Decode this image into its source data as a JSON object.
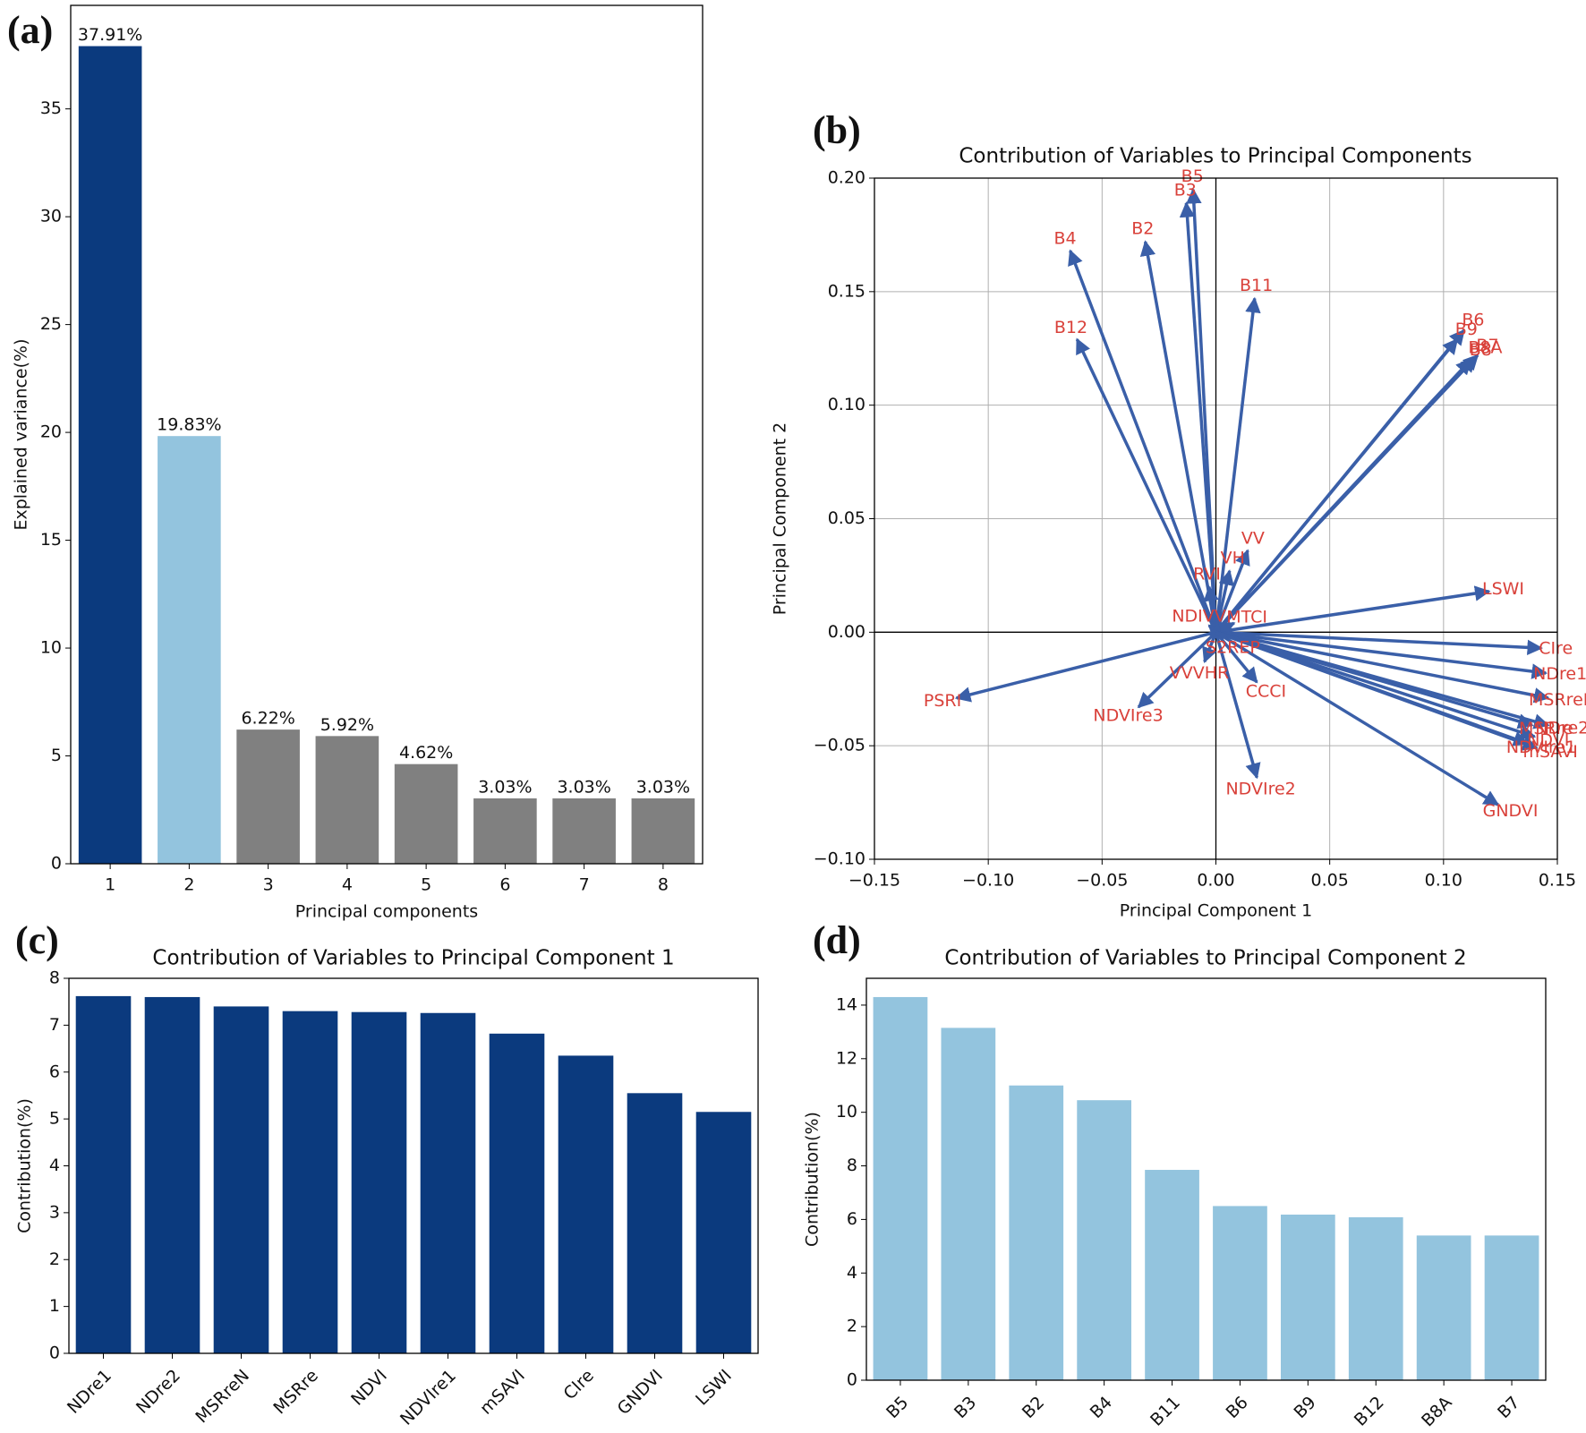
{
  "chart_data": [
    {
      "type": "bar",
      "panel": "(a)",
      "xlabel": "Principal components",
      "ylabel": "Explained variance(%)",
      "categories": [
        "1",
        "2",
        "3",
        "4",
        "5",
        "6",
        "7",
        "8"
      ],
      "values": [
        37.91,
        19.83,
        6.22,
        5.92,
        4.62,
        3.03,
        3.03,
        3.03
      ],
      "value_labels": [
        "37.91%",
        "19.83%",
        "6.22%",
        "5.92%",
        "4.62%",
        "3.03%",
        "3.03%",
        "3.03%"
      ],
      "colors": [
        "#0b3a7e",
        "#93c4de",
        "#808080",
        "#808080",
        "#808080",
        "#808080",
        "#808080",
        "#808080"
      ],
      "ylim": [
        0,
        39.8
      ],
      "yticks": [
        0,
        5,
        10,
        15,
        20,
        25,
        30,
        35
      ],
      "grid": false
    },
    {
      "type": "quiver",
      "panel": "(b)",
      "title": "Contribution of Variables to Principal Components",
      "xlabel": "Principal Component 1",
      "ylabel": "Principal Component 2",
      "names": [
        "B5",
        "B3",
        "B4",
        "B2",
        "B11",
        "B12",
        "B6",
        "B9",
        "B7",
        "B8",
        "B8A",
        "VV",
        "VH",
        "RVI",
        "LSWI",
        "NDIVV",
        "MTCI",
        "S2REP",
        "VVVHR",
        "CCCI",
        "NDVIre3",
        "NDVIre2",
        "PSRI",
        "CIre",
        "NDre1",
        "MSRreN",
        "NDre2",
        "MSRre",
        "NDVIre1",
        "NDVI",
        "mSAVI",
        "GNDVI"
      ],
      "x": [
        -0.01,
        -0.013,
        -0.064,
        -0.031,
        0.017,
        -0.061,
        0.109,
        0.106,
        0.115,
        0.112,
        0.114,
        0.014,
        0.006,
        -0.003,
        0.12,
        -0.003,
        0.008,
        0.003,
        -0.005,
        0.018,
        -0.034,
        0.018,
        -0.114,
        0.143,
        0.145,
        0.146,
        0.146,
        0.139,
        0.137,
        0.14,
        0.141,
        0.124
      ],
      "y": [
        0.195,
        0.189,
        0.168,
        0.172,
        0.147,
        0.129,
        0.133,
        0.129,
        0.122,
        0.12,
        0.121,
        0.036,
        0.027,
        0.02,
        0.018,
        0.003,
        0.004,
        -0.003,
        -0.013,
        -0.022,
        -0.033,
        -0.064,
        -0.029,
        -0.007,
        -0.018,
        -0.029,
        -0.041,
        -0.041,
        -0.049,
        -0.046,
        -0.051,
        -0.076
      ],
      "color": "#3a5fa8",
      "label_color": "#d9413a",
      "xlim": [
        -0.15,
        0.15
      ],
      "ylim": [
        -0.1,
        0.2
      ],
      "xticks": [
        {
          "value": -0.15,
          "label": "−0.15"
        },
        {
          "value": -0.1,
          "label": "−0.10"
        },
        {
          "value": -0.05,
          "label": "−0.05"
        },
        {
          "value": 0,
          "label": "0.00"
        },
        {
          "value": 0.05,
          "label": "0.05"
        },
        {
          "value": 0.1,
          "label": "0.10"
        },
        {
          "value": 0.15,
          "label": "0.15"
        }
      ],
      "yticks": [
        {
          "value": -0.1,
          "label": "−0.10"
        },
        {
          "value": -0.05,
          "label": "−0.05"
        },
        {
          "value": 0,
          "label": "0.00"
        },
        {
          "value": 0.05,
          "label": "0.05"
        },
        {
          "value": 0.1,
          "label": "0.10"
        },
        {
          "value": 0.15,
          "label": "0.15"
        },
        {
          "value": 0.2,
          "label": "0.20"
        }
      ],
      "grid": true
    },
    {
      "type": "bar",
      "panel": "(c)",
      "title": "Contribution of Variables to Principal Component 1",
      "ylabel": "Contribution(%)",
      "categories": [
        "NDre1",
        "NDre2",
        "MSRreN",
        "MSRre",
        "NDVI",
        "NDVIre1",
        "mSAVI",
        "CIre",
        "GNDVI",
        "LSWI"
      ],
      "values": [
        7.62,
        7.6,
        7.4,
        7.3,
        7.28,
        7.26,
        6.82,
        6.35,
        5.55,
        5.15
      ],
      "color": "#0b3a7e",
      "ylim": [
        0,
        8
      ],
      "yticks": [
        0,
        1,
        2,
        3,
        4,
        5,
        6,
        7,
        8
      ],
      "grid": false,
      "rotate_labels": true
    },
    {
      "type": "bar",
      "panel": "(d)",
      "title": "Contribution of Variables to Principal Component 2",
      "ylabel": "Contribution(%)",
      "categories": [
        "B5",
        "B3",
        "B2",
        "B4",
        "B11",
        "B6",
        "B9",
        "B12",
        "B8A",
        "B7"
      ],
      "values": [
        14.3,
        13.15,
        11.0,
        10.45,
        7.85,
        6.5,
        6.18,
        6.08,
        5.4,
        5.4
      ],
      "color": "#93c4de",
      "ylim": [
        0,
        15
      ],
      "yticks": [
        0,
        2,
        4,
        6,
        8,
        10,
        12,
        14
      ],
      "grid": false,
      "rotate_labels": true
    }
  ]
}
